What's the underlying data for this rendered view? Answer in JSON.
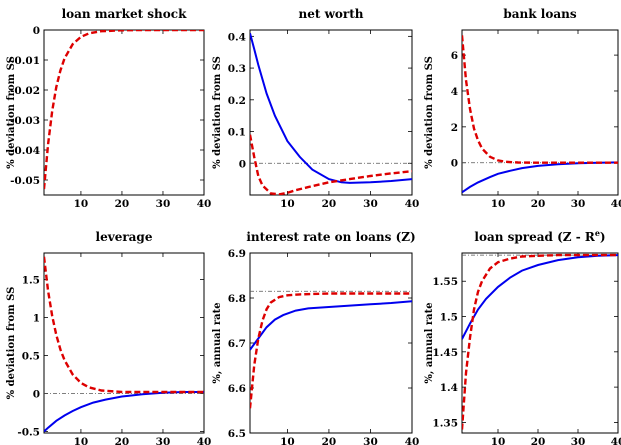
{
  "chart_data": [
    {
      "type": "line",
      "title": "loan market shock",
      "ylabel": "% deviation from SS",
      "xlim": [
        1,
        40
      ],
      "ylim": [
        -0.055,
        0
      ],
      "xticks": [
        "10",
        "20",
        "30",
        "40"
      ],
      "yticks": [
        "0",
        "-0.01",
        "-0.02",
        "-0.03",
        "-0.04",
        "-0.05"
      ],
      "reference_y": null,
      "series": [
        {
          "style": "dashed",
          "color": "#dd0000",
          "x": [
            1,
            2,
            3,
            4,
            5,
            6,
            8,
            10,
            12,
            15,
            20,
            25,
            30,
            40
          ],
          "y": [
            -0.053,
            -0.038,
            -0.027,
            -0.019,
            -0.0135,
            -0.0095,
            -0.0047,
            -0.0023,
            -0.0011,
            -0.0004,
            -0.0001,
            0,
            0,
            0
          ]
        }
      ]
    },
    {
      "type": "line",
      "title": "net worth",
      "ylabel": "% deviation from SS",
      "xlim": [
        1,
        40
      ],
      "ylim": [
        -0.1,
        0.42
      ],
      "xticks": [
        "10",
        "20",
        "30",
        "40"
      ],
      "yticks": [
        "0",
        "0.1",
        "0.2",
        "0.3",
        "0.4"
      ],
      "reference_y": 0,
      "series": [
        {
          "style": "solid",
          "color": "#0000ee",
          "x": [
            1,
            2,
            3,
            5,
            7,
            10,
            13,
            16,
            20,
            23,
            25,
            30,
            35,
            40
          ],
          "y": [
            0.41,
            0.36,
            0.31,
            0.22,
            0.15,
            0.07,
            0.02,
            -0.02,
            -0.05,
            -0.06,
            -0.062,
            -0.06,
            -0.056,
            -0.05
          ]
        },
        {
          "style": "dashed",
          "color": "#dd0000",
          "x": [
            1,
            2,
            3,
            4,
            6,
            8,
            10,
            12,
            15,
            20,
            25,
            30,
            35,
            40
          ],
          "y": [
            0.09,
            0.02,
            -0.04,
            -0.07,
            -0.095,
            -0.098,
            -0.093,
            -0.085,
            -0.075,
            -0.06,
            -0.05,
            -0.04,
            -0.032,
            -0.025
          ]
        }
      ]
    },
    {
      "type": "line",
      "title": "bank loans",
      "ylabel": "% deviation from SS",
      "xlim": [
        1,
        40
      ],
      "ylim": [
        -1.8,
        7.4
      ],
      "xticks": [
        "10",
        "20",
        "30",
        "40"
      ],
      "yticks": [
        "0",
        "2",
        "4",
        "6"
      ],
      "reference_y": 0,
      "series": [
        {
          "style": "solid",
          "color": "#0000ee",
          "x": [
            1,
            3,
            5,
            8,
            10,
            13,
            16,
            20,
            25,
            30,
            35,
            40
          ],
          "y": [
            -1.65,
            -1.35,
            -1.1,
            -0.8,
            -0.62,
            -0.45,
            -0.3,
            -0.18,
            -0.08,
            -0.03,
            0,
            0.02
          ]
        },
        {
          "style": "dashed",
          "color": "#dd0000",
          "x": [
            1,
            2,
            3,
            4,
            5,
            6,
            8,
            10,
            12,
            15,
            20,
            30,
            40
          ],
          "y": [
            7.1,
            4.6,
            3.0,
            1.9,
            1.25,
            0.8,
            0.33,
            0.13,
            0.05,
            0.01,
            0,
            0,
            0
          ]
        }
      ]
    },
    {
      "type": "line",
      "title": "leverage",
      "ylabel": "% deviation from SS",
      "xlim": [
        1,
        40
      ],
      "ylim": [
        -0.52,
        1.85
      ],
      "xticks": [
        "10",
        "20",
        "30",
        "40"
      ],
      "yticks": [
        "1.5",
        "1",
        "0.5",
        "0",
        "-0.5"
      ],
      "reference_y": 0,
      "series": [
        {
          "style": "solid",
          "color": "#0000ee",
          "x": [
            1,
            2,
            4,
            6,
            8,
            10,
            13,
            16,
            20,
            25,
            30,
            35,
            40
          ],
          "y": [
            -0.5,
            -0.45,
            -0.36,
            -0.29,
            -0.23,
            -0.18,
            -0.12,
            -0.08,
            -0.04,
            -0.01,
            0.01,
            0.02,
            0.02
          ]
        },
        {
          "style": "dashed",
          "color": "#dd0000",
          "x": [
            1,
            2,
            3,
            4,
            5,
            6,
            8,
            10,
            12,
            15,
            20,
            25,
            30,
            40
          ],
          "y": [
            1.8,
            1.35,
            1.02,
            0.77,
            0.58,
            0.44,
            0.25,
            0.14,
            0.08,
            0.04,
            0.02,
            0.02,
            0.02,
            0.02
          ]
        }
      ]
    },
    {
      "type": "line",
      "title": "interest rate on loans (Z)",
      "ylabel": "%, annual rate",
      "xlim": [
        1,
        40
      ],
      "ylim": [
        6.5,
        6.9
      ],
      "xticks": [
        "10",
        "20",
        "30",
        "40"
      ],
      "yticks": [
        "6.9",
        "6.8",
        "6.7",
        "6.6",
        "6.5"
      ],
      "reference_y": 6.815,
      "series": [
        {
          "style": "solid",
          "color": "#0000ee",
          "x": [
            1,
            3,
            5,
            7,
            9,
            12,
            15,
            20,
            25,
            30,
            35,
            40
          ],
          "y": [
            6.685,
            6.71,
            6.735,
            6.752,
            6.762,
            6.772,
            6.777,
            6.78,
            6.783,
            6.786,
            6.789,
            6.793
          ]
        },
        {
          "style": "dashed",
          "color": "#dd0000",
          "x": [
            1,
            2,
            3,
            4,
            5,
            6,
            8,
            10,
            13,
            16,
            20,
            25,
            30,
            40
          ],
          "y": [
            6.555,
            6.65,
            6.71,
            6.75,
            6.775,
            6.79,
            6.802,
            6.806,
            6.808,
            6.809,
            6.81,
            6.81,
            6.81,
            6.81
          ]
        }
      ]
    },
    {
      "type": "line",
      "title": "loan spread (Z - R",
      "title_sup": "e",
      "title_end": ")",
      "ylabel": "%, annual rate",
      "xlim": [
        1,
        40
      ],
      "ylim": [
        1.335,
        1.59
      ],
      "xticks": [
        "10",
        "20",
        "30",
        "40"
      ],
      "yticks": [
        "1.55",
        "1.5",
        "1.45",
        "1.4",
        "1.35"
      ],
      "reference_y": 1.587,
      "series": [
        {
          "style": "solid",
          "color": "#0000ee",
          "x": [
            1,
            3,
            5,
            7,
            10,
            13,
            16,
            20,
            25,
            30,
            35,
            40
          ],
          "y": [
            1.468,
            1.49,
            1.51,
            1.525,
            1.542,
            1.555,
            1.565,
            1.573,
            1.58,
            1.584,
            1.586,
            1.587
          ]
        },
        {
          "style": "dashed",
          "color": "#dd0000",
          "x": [
            1,
            2,
            3,
            4,
            5,
            6,
            8,
            10,
            13,
            16,
            20,
            25,
            30,
            40
          ],
          "y": [
            1.34,
            1.42,
            1.47,
            1.51,
            1.535,
            1.55,
            1.568,
            1.577,
            1.582,
            1.585,
            1.586,
            1.587,
            1.587,
            1.587
          ]
        }
      ]
    }
  ]
}
